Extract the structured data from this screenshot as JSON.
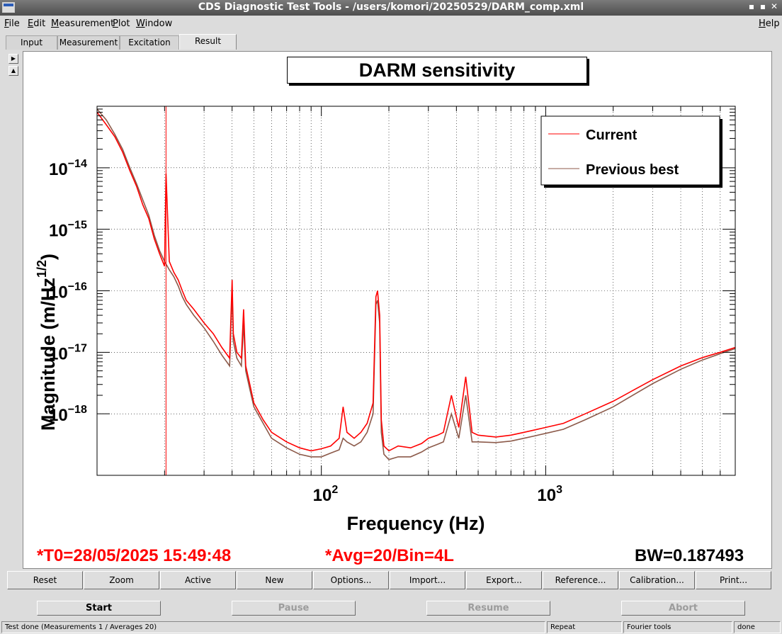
{
  "window": {
    "title": "CDS Diagnostic Test Tools - /users/komori/20250529/DARM_comp.xml",
    "minimize": "▪",
    "maximize": "▪",
    "close": "✕"
  },
  "menu": {
    "file": {
      "ul": "F",
      "rest": "ile"
    },
    "edit": {
      "ul": "E",
      "rest": "dit"
    },
    "measurement": {
      "ul": "M",
      "rest": "easurement"
    },
    "plot": {
      "ul": "P",
      "rest": "lot"
    },
    "window": {
      "ul": "W",
      "rest": "indow"
    },
    "help": {
      "ul": "H",
      "rest": "elp"
    }
  },
  "tabs": [
    "Input",
    "Measurement",
    "Excitation",
    "Result"
  ],
  "active_tab": "Result",
  "scroll": {
    "right": "▶",
    "up": "▲"
  },
  "plot": {
    "title": "DARM sensitivity",
    "ylabel": "Magnitude (m/Hz",
    "ylabel_sup": "1/2",
    "ylabel_close": ")",
    "xlabel": "Frequency (Hz)",
    "legend": [
      "Current",
      "Previous best"
    ],
    "t0": "*T0=28/05/2025 15:49:48",
    "avg": "*Avg=20/Bin=4L",
    "bw": "BW=0.187493"
  },
  "chart_data": {
    "type": "line",
    "title": "DARM sensitivity",
    "xlabel": "Frequency (Hz)",
    "ylabel": "Magnitude (m/Hz1/2)",
    "xscale": "log",
    "yscale": "log",
    "xlim": [
      10,
      7000
    ],
    "ylim": [
      1e-19,
      1e-13
    ],
    "x_tick_labels": [
      {
        "base": "10",
        "exp": "2",
        "value": 100
      },
      {
        "base": "10",
        "exp": "3",
        "value": 1000
      }
    ],
    "y_tick_labels": [
      {
        "base": "10",
        "exp": "−14",
        "value": 1e-14
      },
      {
        "base": "10",
        "exp": "−15",
        "value": 1e-15
      },
      {
        "base": "10",
        "exp": "−16",
        "value": 1e-16
      },
      {
        "base": "10",
        "exp": "−17",
        "value": 1e-17
      },
      {
        "base": "10",
        "exp": "−18",
        "value": 1e-18
      }
    ],
    "grid": true,
    "legend_position": "top-right",
    "series": [
      {
        "name": "Current",
        "color": "#ff0000",
        "x": [
          10,
          11,
          12,
          13,
          14,
          15,
          16,
          17,
          18,
          19,
          20,
          20.3,
          21,
          22,
          23,
          24,
          25,
          27,
          30,
          33,
          36,
          39,
          40,
          40.5,
          42,
          44,
          45,
          46,
          48,
          50,
          55,
          60,
          70,
          80,
          90,
          100,
          110,
          120,
          125,
          130,
          140,
          150,
          160,
          170,
          175,
          178,
          182,
          185,
          190,
          200,
          220,
          250,
          280,
          300,
          330,
          350,
          380,
          410,
          440,
          470,
          500,
          600,
          700,
          800,
          900,
          1000,
          1200,
          1500,
          2000,
          2500,
          3000,
          4000,
          5000,
          6000,
          7000
        ],
        "y": [
          8e-14,
          5e-14,
          3.2e-14,
          1.8e-14,
          9e-15,
          5e-15,
          2.5e-15,
          1.5e-15,
          7e-16,
          4e-16,
          2.5e-16,
          8e-15,
          3e-16,
          2e-16,
          1.5e-16,
          1e-16,
          7e-17,
          5e-17,
          3e-17,
          2e-17,
          1.2e-17,
          8e-18,
          1.5e-16,
          2e-17,
          1e-17,
          8e-18,
          5e-17,
          6e-18,
          3e-18,
          1.5e-18,
          8e-19,
          5e-19,
          3.5e-19,
          2.8e-19,
          2.5e-19,
          2.7e-19,
          3e-19,
          4e-19,
          1.3e-18,
          5e-19,
          4e-19,
          5e-19,
          7e-19,
          1.5e-18,
          8e-17,
          1e-16,
          4e-17,
          8e-19,
          3e-19,
          2.5e-19,
          3e-19,
          2.8e-19,
          3.3e-19,
          4e-19,
          4.5e-19,
          5e-19,
          2e-18,
          6e-19,
          4e-18,
          5e-19,
          4.5e-19,
          4.2e-19,
          4.5e-19,
          5e-19,
          5.5e-19,
          6e-19,
          7e-19,
          1e-18,
          1.6e-18,
          2.5e-18,
          3.6e-18,
          6e-18,
          8.2e-18,
          1e-17,
          1.2e-17
        ]
      },
      {
        "name": "Previous best",
        "color": "#8c5a4a",
        "x": [
          10,
          11,
          12,
          13,
          14,
          15,
          16,
          17,
          18,
          19,
          20,
          21,
          22,
          23,
          24,
          25,
          27,
          30,
          33,
          36,
          39,
          40,
          40.5,
          42,
          44,
          45,
          46,
          48,
          50,
          55,
          60,
          70,
          80,
          90,
          100,
          110,
          120,
          125,
          130,
          140,
          150,
          160,
          170,
          175,
          178,
          182,
          185,
          190,
          200,
          220,
          250,
          280,
          300,
          330,
          350,
          380,
          410,
          440,
          470,
          500,
          600,
          700,
          800,
          900,
          1000,
          1200,
          1500,
          2000,
          2500,
          3000,
          4000,
          5000,
          6000,
          7000
        ],
        "y": [
          9e-14,
          6e-14,
          3.5e-14,
          2e-14,
          1e-14,
          5.5e-15,
          3e-15,
          1.7e-15,
          8e-16,
          4.5e-16,
          3e-16,
          2.2e-16,
          1.7e-16,
          1.2e-16,
          8e-17,
          6e-17,
          4e-17,
          2.5e-17,
          1.5e-17,
          9e-18,
          6e-18,
          1e-16,
          1.5e-17,
          8e-18,
          6e-18,
          3e-17,
          5e-18,
          2.5e-18,
          1.3e-18,
          7e-19,
          4e-19,
          2.8e-19,
          2.2e-19,
          2e-19,
          2e-19,
          2.3e-19,
          2.6e-19,
          4e-19,
          3.5e-19,
          3e-19,
          3.5e-19,
          5e-19,
          1e-18,
          6e-17,
          7e-17,
          3e-17,
          5e-19,
          2.2e-19,
          1.8e-19,
          2e-19,
          2e-19,
          2.4e-19,
          2.8e-19,
          3.2e-19,
          3.5e-19,
          1e-18,
          4e-19,
          2e-18,
          3.5e-19,
          3.5e-19,
          3.4e-19,
          3.6e-19,
          4e-19,
          4.4e-19,
          4.8e-19,
          5.6e-19,
          8e-19,
          1.3e-18,
          2.1e-18,
          3.1e-18,
          5.3e-18,
          7.5e-18,
          9.5e-18,
          1.15e-17
        ]
      }
    ],
    "annotations": [
      {
        "type": "vertical-line",
        "x": 20.3,
        "color": "#ff0000"
      }
    ]
  },
  "actions": [
    "Reset",
    "Zoom",
    "Active",
    "New",
    "Options...",
    "Import...",
    "Export...",
    "Reference...",
    "Calibration...",
    "Print..."
  ],
  "controls": {
    "start": "Start",
    "pause": "Pause",
    "resume": "Resume",
    "abort": "Abort"
  },
  "status": {
    "message": "Test done (Measurements 1 / Averages 20)",
    "mode": "Repeat",
    "tool": "Fourier tools",
    "state": "done"
  }
}
